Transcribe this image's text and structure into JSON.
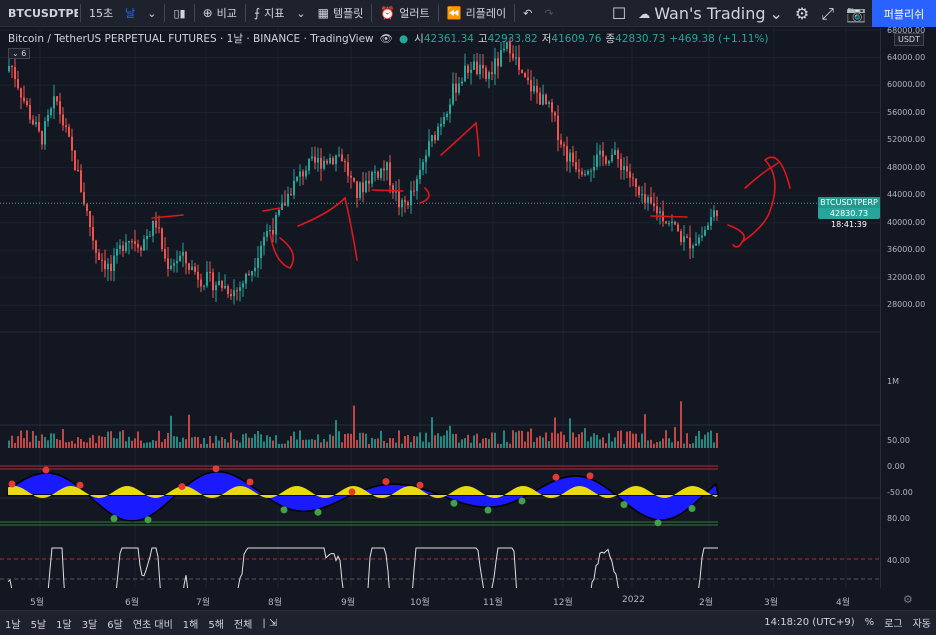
{
  "toolbar": {
    "symbol": "BTCUSDTPERP",
    "interval": "15초",
    "interval_active": "날",
    "compare": "비교",
    "indicators": "지표",
    "templates": "템플릿",
    "alerts": "얼러트",
    "replay": "리플레이",
    "layout_name": "Wan's Trading",
    "publish": "퍼블리쉬"
  },
  "legend": {
    "title": "Bitcoin / TetherUS PERPETUAL FUTURES · 1날 · BINANCE · TradingView",
    "open_label": "시",
    "open": "42361.34",
    "high_label": "고",
    "high": "42933.82",
    "low_label": "저",
    "low": "41609.76",
    "close_label": "종",
    "close": "42830.73",
    "change": "+469.38 (+1.11%)",
    "indicator_count": "6"
  },
  "price_axis": {
    "currency": "USDT",
    "labels": [
      "68000.00",
      "64000.00",
      "60000.00",
      "56000.00",
      "52000.00",
      "48000.00",
      "44000.00",
      "40000.00",
      "36000.00",
      "32000.00",
      "28000.00"
    ],
    "volume_label": "1M",
    "osc_labels": [
      "50.00",
      "0.00",
      "-50.00"
    ],
    "rsi_labels": [
      "80.00",
      "40.00"
    ]
  },
  "price_tag": {
    "symbol": "BTCUSDTPERP",
    "price": "42830.73",
    "countdown": "18:41:39"
  },
  "time_axis": [
    "5월",
    "6월",
    "7월",
    "8월",
    "9월",
    "10월",
    "11월",
    "12월",
    "2022",
    "2월",
    "3월",
    "4월"
  ],
  "bottom_bar": {
    "ranges": [
      "1날",
      "5날",
      "1달",
      "3달",
      "6달",
      "연초 대비",
      "1해",
      "5해",
      "전체"
    ],
    "clock": "14:18:20 (UTC+9)",
    "percent": "%",
    "log": "로그",
    "auto": "자동"
  },
  "colors": {
    "up": "#26a69a",
    "down": "#ef5350",
    "accent": "#2962ff",
    "drawing": "#e0161c"
  },
  "chart_data": {
    "type": "candlestick",
    "x": [
      "2021-04-15",
      "2021-05-01",
      "2021-06-01",
      "2021-07-01",
      "2021-08-01",
      "2021-09-01",
      "2021-10-01",
      "2021-11-01",
      "2021-12-01",
      "2022-01-01",
      "2022-02-01",
      "2022-02-08"
    ],
    "close": [
      63000,
      57000,
      37000,
      33500,
      40000,
      47000,
      44000,
      61500,
      57000,
      47000,
      38500,
      42830.73
    ],
    "ylim": [
      25000,
      68000
    ],
    "last_close": 42830.73
  }
}
